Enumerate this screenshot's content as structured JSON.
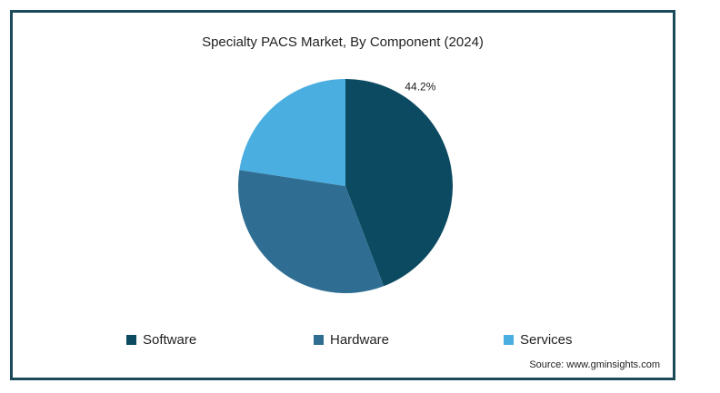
{
  "chart_data": {
    "type": "pie",
    "title": "Specialty PACS Market, By Component (2024)",
    "slices": [
      {
        "label": "Software",
        "value": 44.2,
        "color": "#0b4a61",
        "data_label": "44.2%"
      },
      {
        "label": "Hardware",
        "value": 33.2,
        "color": "#2f6e92",
        "data_label": ""
      },
      {
        "label": "Services",
        "value": 22.6,
        "color": "#4aaee0",
        "data_label": ""
      }
    ],
    "legend_placement": "bottom"
  },
  "source": "Source: www.gminsights.com"
}
